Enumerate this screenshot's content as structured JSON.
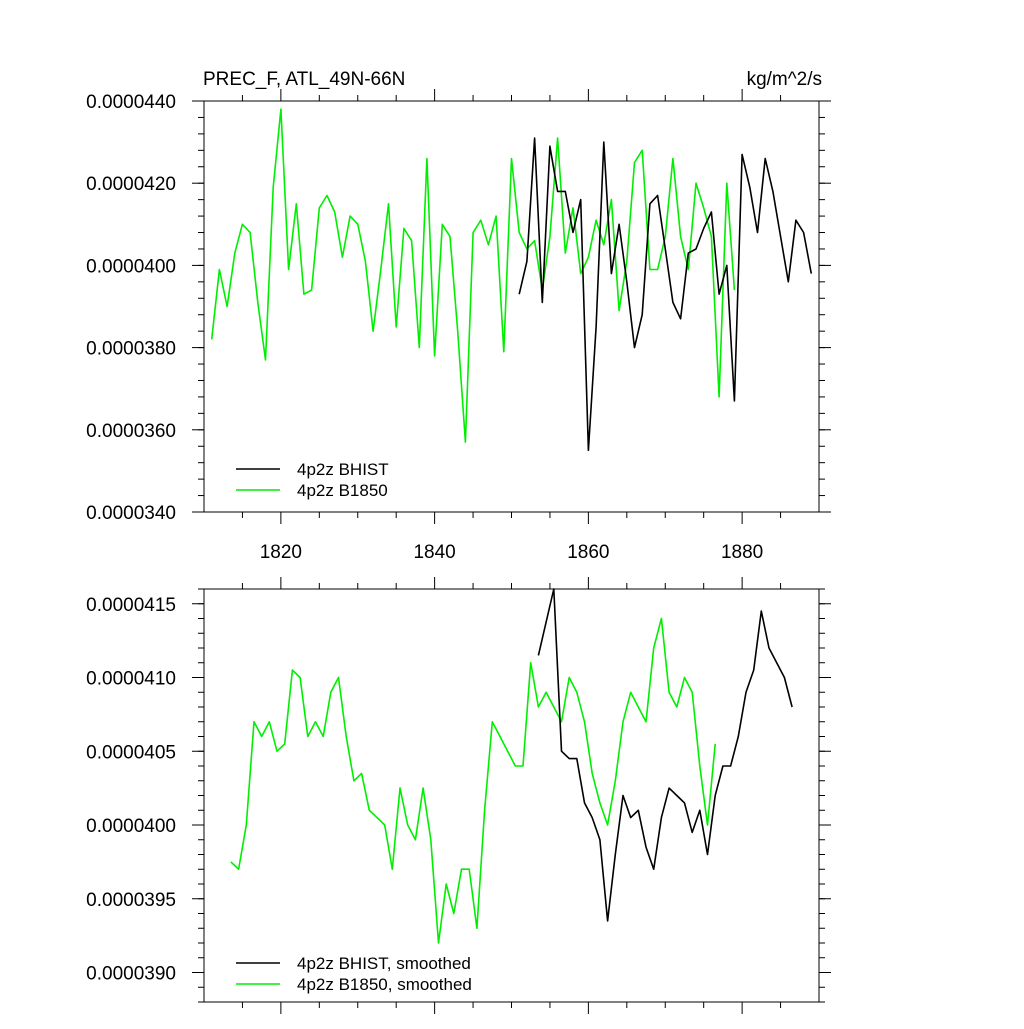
{
  "header": {
    "left_title": "PREC_F, ATL_49N-66N",
    "right_title": "kg/m^2/s"
  },
  "colors": {
    "bhist": "#000000",
    "b1850": "#00ee00",
    "axis": "#000000"
  },
  "chart_data": [
    {
      "type": "line",
      "title": "PREC_F, ATL_49N-66N",
      "unit_label": "kg/m^2/s",
      "xlabel": "",
      "ylabel": "",
      "xlim": [
        1810,
        1890
      ],
      "ylim": [
        3.4e-05,
        4.4e-05
      ],
      "x_ticks": [
        1820,
        1840,
        1860,
        1880
      ],
      "x_tick_labels": [
        "1820",
        "1840",
        "1860",
        "1880"
      ],
      "y_ticks": [
        3.4e-05,
        3.6e-05,
        3.8e-05,
        4e-05,
        4.2e-05,
        4.4e-05
      ],
      "y_tick_labels": [
        "0.0000340",
        "0.0000360",
        "0.0000380",
        "0.0000400",
        "0.0000420",
        "0.0000440"
      ],
      "grid": false,
      "legend_position": "bottom-left",
      "series": [
        {
          "name": "4p2z BHIST",
          "color": "#000000",
          "x": [
            1851,
            1852,
            1853,
            1854,
            1855,
            1856,
            1857,
            1858,
            1859,
            1860,
            1861,
            1862,
            1863,
            1864,
            1865,
            1866,
            1867,
            1868,
            1869,
            1870,
            1871,
            1872,
            1873,
            1874,
            1875,
            1876,
            1877,
            1878,
            1879,
            1880,
            1881,
            1882,
            1883,
            1884,
            1885,
            1886,
            1887,
            1888,
            1889
          ],
          "y": [
            3.93e-05,
            4.01e-05,
            4.31e-05,
            3.91e-05,
            4.29e-05,
            4.18e-05,
            4.18e-05,
            4.08e-05,
            4.16e-05,
            3.55e-05,
            3.85e-05,
            4.3e-05,
            3.98e-05,
            4.1e-05,
            3.96e-05,
            3.8e-05,
            3.88e-05,
            4.15e-05,
            4.17e-05,
            4.04e-05,
            3.91e-05,
            3.87e-05,
            4.03e-05,
            4.04e-05,
            4.09e-05,
            4.13e-05,
            3.93e-05,
            4e-05,
            3.67e-05,
            4.27e-05,
            4.19e-05,
            4.08e-05,
            4.26e-05,
            4.18e-05,
            4.07e-05,
            3.96e-05,
            4.11e-05,
            4.08e-05,
            3.98e-05
          ]
        },
        {
          "name": "4p2z B1850",
          "color": "#00ee00",
          "x": [
            1811,
            1812,
            1813,
            1814,
            1815,
            1816,
            1817,
            1818,
            1819,
            1820,
            1821,
            1822,
            1823,
            1824,
            1825,
            1826,
            1827,
            1828,
            1829,
            1830,
            1831,
            1832,
            1833,
            1834,
            1835,
            1836,
            1837,
            1838,
            1839,
            1840,
            1841,
            1842,
            1843,
            1844,
            1845,
            1846,
            1847,
            1848,
            1849,
            1850,
            1851,
            1852,
            1853,
            1854,
            1855,
            1856,
            1857,
            1858,
            1859,
            1860,
            1861,
            1862,
            1863,
            1864,
            1865,
            1866,
            1867,
            1868,
            1869,
            1870,
            1871,
            1872,
            1873,
            1874,
            1875,
            1876,
            1877,
            1878,
            1879
          ],
          "y": [
            3.82e-05,
            3.99e-05,
            3.9e-05,
            4.03e-05,
            4.1e-05,
            4.08e-05,
            3.91e-05,
            3.77e-05,
            4.19e-05,
            4.38e-05,
            3.99e-05,
            4.15e-05,
            3.93e-05,
            3.94e-05,
            4.14e-05,
            4.17e-05,
            4.13e-05,
            4.02e-05,
            4.12e-05,
            4.1e-05,
            4.01e-05,
            3.84e-05,
            3.99e-05,
            4.15e-05,
            3.85e-05,
            4.09e-05,
            4.06e-05,
            3.8e-05,
            4.26e-05,
            3.78e-05,
            4.1e-05,
            4.07e-05,
            3.84e-05,
            3.57e-05,
            4.08e-05,
            4.11e-05,
            4.05e-05,
            4.12e-05,
            3.79e-05,
            4.26e-05,
            4.08e-05,
            4.04e-05,
            4.06e-05,
            3.94e-05,
            4.07e-05,
            4.31e-05,
            4.03e-05,
            4.14e-05,
            3.98e-05,
            4.02e-05,
            4.11e-05,
            4.05e-05,
            4.16e-05,
            3.89e-05,
            4.01e-05,
            4.25e-05,
            4.28e-05,
            3.99e-05,
            3.99e-05,
            4.07e-05,
            4.26e-05,
            4.07e-05,
            3.99e-05,
            4.2e-05,
            4.14e-05,
            4.07e-05,
            3.68e-05,
            4.2e-05,
            3.94e-05
          ]
        }
      ]
    },
    {
      "type": "line",
      "title": "",
      "xlabel": "",
      "ylabel": "",
      "xlim": [
        1810,
        1890
      ],
      "ylim": [
        3.88e-05,
        4.16e-05
      ],
      "x_ticks": [
        1820,
        1840,
        1860,
        1880
      ],
      "x_tick_labels": [],
      "y_ticks": [
        3.9e-05,
        3.95e-05,
        4e-05,
        4.05e-05,
        4.1e-05,
        4.15e-05
      ],
      "y_tick_labels": [
        "0.0000390",
        "0.0000395",
        "0.0000400",
        "0.0000405",
        "0.0000410",
        "0.0000415"
      ],
      "grid": false,
      "legend_position": "bottom-left",
      "series": [
        {
          "name": "4p2z BHIST, smoothed",
          "color": "#000000",
          "x": [
            1853.5,
            1855.5,
            1856.5,
            1857.5,
            1858.5,
            1859.5,
            1860.5,
            1861.5,
            1862.5,
            1863.5,
            1864.5,
            1865.5,
            1866.5,
            1867.5,
            1868.5,
            1869.5,
            1870.5,
            1871.5,
            1872.5,
            1873.5,
            1874.5,
            1875.5,
            1876.5,
            1877.5,
            1878.5,
            1879.5,
            1880.5,
            1881.5,
            1882.5,
            1883.5,
            1884.5,
            1885.5,
            1886.5
          ],
          "y": [
            4.115e-05,
            4.16e-05,
            4.05e-05,
            4.045e-05,
            4.045e-05,
            4.015e-05,
            4.005e-05,
            3.99e-05,
            3.935e-05,
            3.98e-05,
            4.02e-05,
            4.005e-05,
            4.01e-05,
            3.985e-05,
            3.97e-05,
            4.005e-05,
            4.025e-05,
            4.02e-05,
            4.015e-05,
            3.995e-05,
            4.01e-05,
            3.98e-05,
            4.02e-05,
            4.04e-05,
            4.04e-05,
            4.06e-05,
            4.09e-05,
            4.105e-05,
            4.145e-05,
            4.12e-05,
            4.11e-05,
            4.1e-05,
            4.08e-05
          ]
        },
        {
          "name": "4p2z B1850, smoothed",
          "color": "#00ee00",
          "x": [
            1813.5,
            1814.5,
            1815.5,
            1816.5,
            1817.5,
            1818.5,
            1819.5,
            1820.5,
            1821.5,
            1822.5,
            1823.5,
            1824.5,
            1825.5,
            1826.5,
            1827.5,
            1828.5,
            1829.5,
            1830.5,
            1831.5,
            1832.5,
            1833.5,
            1834.5,
            1835.5,
            1836.5,
            1837.5,
            1838.5,
            1839.5,
            1840.5,
            1841.5,
            1842.5,
            1843.5,
            1844.5,
            1845.5,
            1846.5,
            1847.5,
            1848.5,
            1849.5,
            1850.5,
            1851.5,
            1852.5,
            1853.5,
            1854.5,
            1855.5,
            1856.5,
            1857.5,
            1858.5,
            1859.5,
            1860.5,
            1861.5,
            1862.5,
            1863.5,
            1864.5,
            1865.5,
            1866.5,
            1867.5,
            1868.5,
            1869.5,
            1870.5,
            1871.5,
            1872.5,
            1873.5,
            1874.5,
            1875.5,
            1876.5
          ],
          "y": [
            3.975e-05,
            3.97e-05,
            4e-05,
            4.07e-05,
            4.06e-05,
            4.07e-05,
            4.05e-05,
            4.055e-05,
            4.105e-05,
            4.1e-05,
            4.06e-05,
            4.07e-05,
            4.06e-05,
            4.09e-05,
            4.1e-05,
            4.06e-05,
            4.03e-05,
            4.035e-05,
            4.01e-05,
            4.005e-05,
            4e-05,
            3.97e-05,
            4.025e-05,
            4e-05,
            3.99e-05,
            4.025e-05,
            3.99e-05,
            3.92e-05,
            3.96e-05,
            3.94e-05,
            3.97e-05,
            3.97e-05,
            3.93e-05,
            4.01e-05,
            4.07e-05,
            4.06e-05,
            4.05e-05,
            4.04e-05,
            4.04e-05,
            4.11e-05,
            4.08e-05,
            4.09e-05,
            4.08e-05,
            4.07e-05,
            4.1e-05,
            4.09e-05,
            4.07e-05,
            4.035e-05,
            4.015e-05,
            4e-05,
            4.03e-05,
            4.07e-05,
            4.09e-05,
            4.08e-05,
            4.07e-05,
            4.12e-05,
            4.14e-05,
            4.09e-05,
            4.08e-05,
            4.1e-05,
            4.09e-05,
            4.04e-05,
            4e-05,
            4.055e-05
          ]
        }
      ]
    }
  ]
}
